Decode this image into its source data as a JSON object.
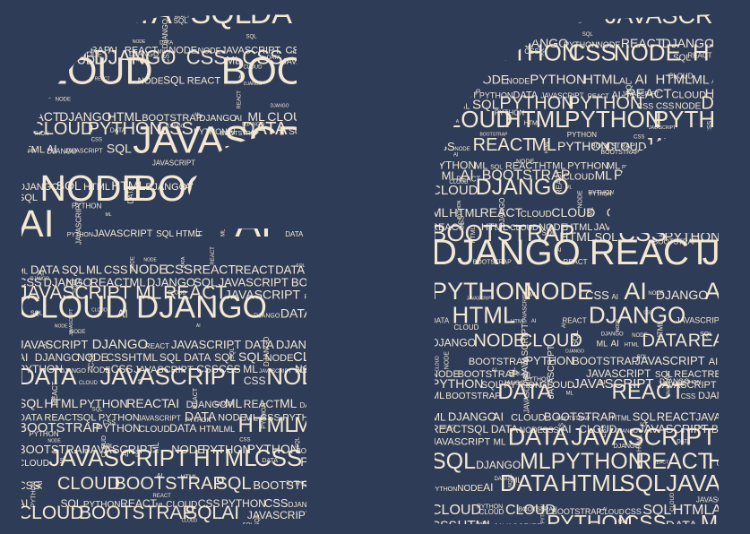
{
  "artwork": {
    "kind": "word-cloud quotation marks",
    "background": "#2f3c58",
    "text_color": "#f3e8d1",
    "vocabulary": [
      "AI",
      "ML",
      "CSS",
      "HTML",
      "NODE",
      "DATA",
      "SQL",
      "CLOUD",
      "REACT",
      "PYTHON",
      "DJANGO",
      "BOOTSTRAP",
      "JAVASCRIPT"
    ]
  }
}
